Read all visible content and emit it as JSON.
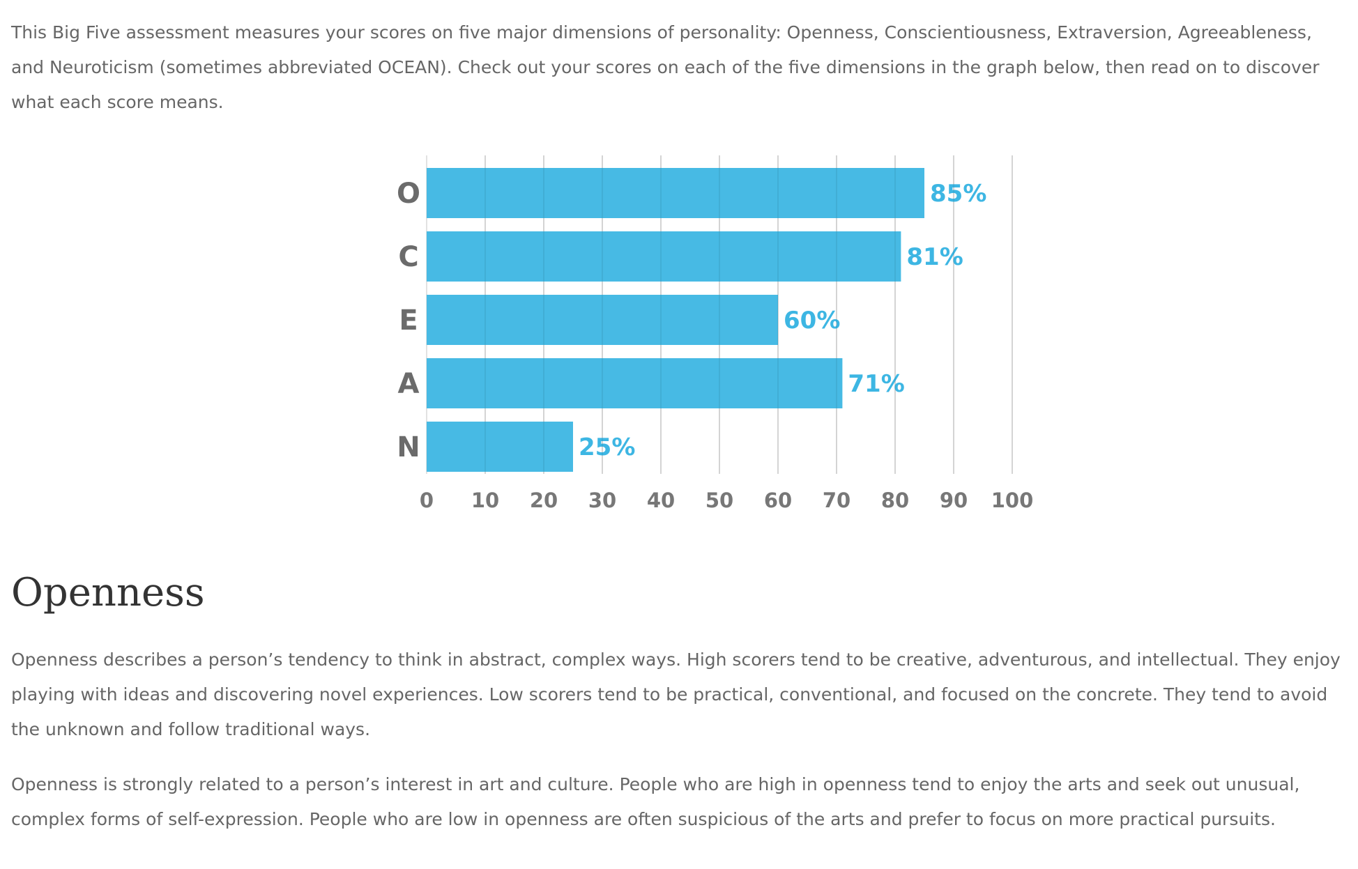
{
  "intro": "This Big Five assessment measures your scores on five major dimensions of personality: Openness, Conscientiousness, Extraversion, Agreeableness, and Neuroticism (sometimes abbreviated OCEAN). Check out your scores on each of the five dimensions in the graph below, then read on to discover what each score means.",
  "chart_data": {
    "type": "bar",
    "orientation": "horizontal",
    "categories": [
      "O",
      "C",
      "E",
      "A",
      "N"
    ],
    "values": [
      85,
      81,
      60,
      71,
      25
    ],
    "value_labels": [
      "85%",
      "81%",
      "60%",
      "71%",
      "25%"
    ],
    "xlim": [
      0,
      100
    ],
    "xticks": [
      0,
      10,
      20,
      30,
      40,
      50,
      60,
      70,
      80,
      90,
      100
    ],
    "title": "",
    "xlabel": "",
    "ylabel": "",
    "grid": true,
    "bar_color": "#3db6e3",
    "grid_color": "#e2e2e2"
  },
  "section": {
    "heading": "Openness",
    "paragraphs": [
      "Openness describes a person’s tendency to think in abstract, complex ways. High scorers tend to be creative, adventurous, and intellectual. They enjoy playing with ideas and discovering novel experiences. Low scorers tend to be practical, conventional, and focused on the concrete. They tend to avoid the unknown and follow traditional ways.",
      "Openness is strongly related to a person’s interest in art and culture. People who are high in openness tend to enjoy the arts and seek out unusual, complex forms of self-expression. People who are low in openness are often suspicious of the arts and prefer to focus on more practical pursuits."
    ]
  }
}
